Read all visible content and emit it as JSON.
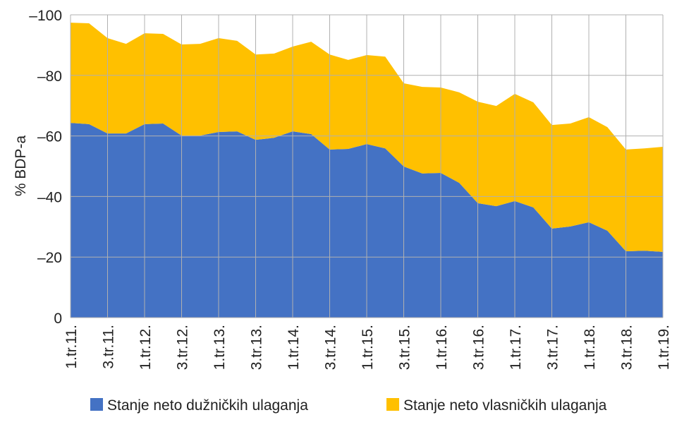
{
  "chart_data": {
    "type": "area",
    "stacked": true,
    "title": "",
    "xlabel": "",
    "ylabel": "% BDP-a",
    "ylim": [
      0,
      -100
    ],
    "yticks": [
      0,
      -20,
      -40,
      -60,
      -80,
      -100
    ],
    "ytick_labels": [
      "0",
      "–20",
      "–40",
      "–60",
      "–80",
      "–100"
    ],
    "grid": true,
    "legend_position": "bottom",
    "x_tick_labels": [
      "1.tr.11.",
      "3.tr.11.",
      "1.tr.12.",
      "3.tr.12.",
      "1.tr.13.",
      "3.tr.13.",
      "1.tr.14.",
      "3.tr.14.",
      "1.tr.15.",
      "3.tr.15.",
      "1.tr.16.",
      "3.tr.16.",
      "1.tr.17.",
      "3.tr.17.",
      "1.tr.18.",
      "3.tr.18.",
      "1.tr.19."
    ],
    "x_count": 33,
    "series": [
      {
        "name": "Stanje neto dužničkih ulaganja",
        "color": "#4472C4",
        "values": [
          -64.3,
          -63.9,
          -60.8,
          -60.8,
          -63.9,
          -64.1,
          -60.1,
          -60.1,
          -61.3,
          -61.5,
          -58.7,
          -59.4,
          -61.5,
          -60.6,
          -55.5,
          -55.7,
          -57.3,
          -55.9,
          -49.9,
          -47.6,
          -47.8,
          -44.5,
          -37.8,
          -36.8,
          -38.5,
          -36.4,
          -29.4,
          -30.1,
          -31.5,
          -28.7,
          -21.9,
          -22.1,
          -21.7
        ]
      },
      {
        "name": "Stanje neto vlasničkih ulaganja",
        "color": "#FFC000",
        "values": [
          -33.1,
          -33.3,
          -31.5,
          -29.6,
          -30.0,
          -29.6,
          -30.1,
          -30.3,
          -31.0,
          -29.9,
          -28.2,
          -27.8,
          -28.0,
          -30.5,
          -31.4,
          -29.4,
          -29.4,
          -30.3,
          -27.5,
          -28.6,
          -28.2,
          -29.9,
          -33.5,
          -33.1,
          -35.4,
          -34.7,
          -34.2,
          -34.0,
          -34.7,
          -34.2,
          -33.6,
          -33.8,
          -34.7
        ]
      }
    ]
  }
}
